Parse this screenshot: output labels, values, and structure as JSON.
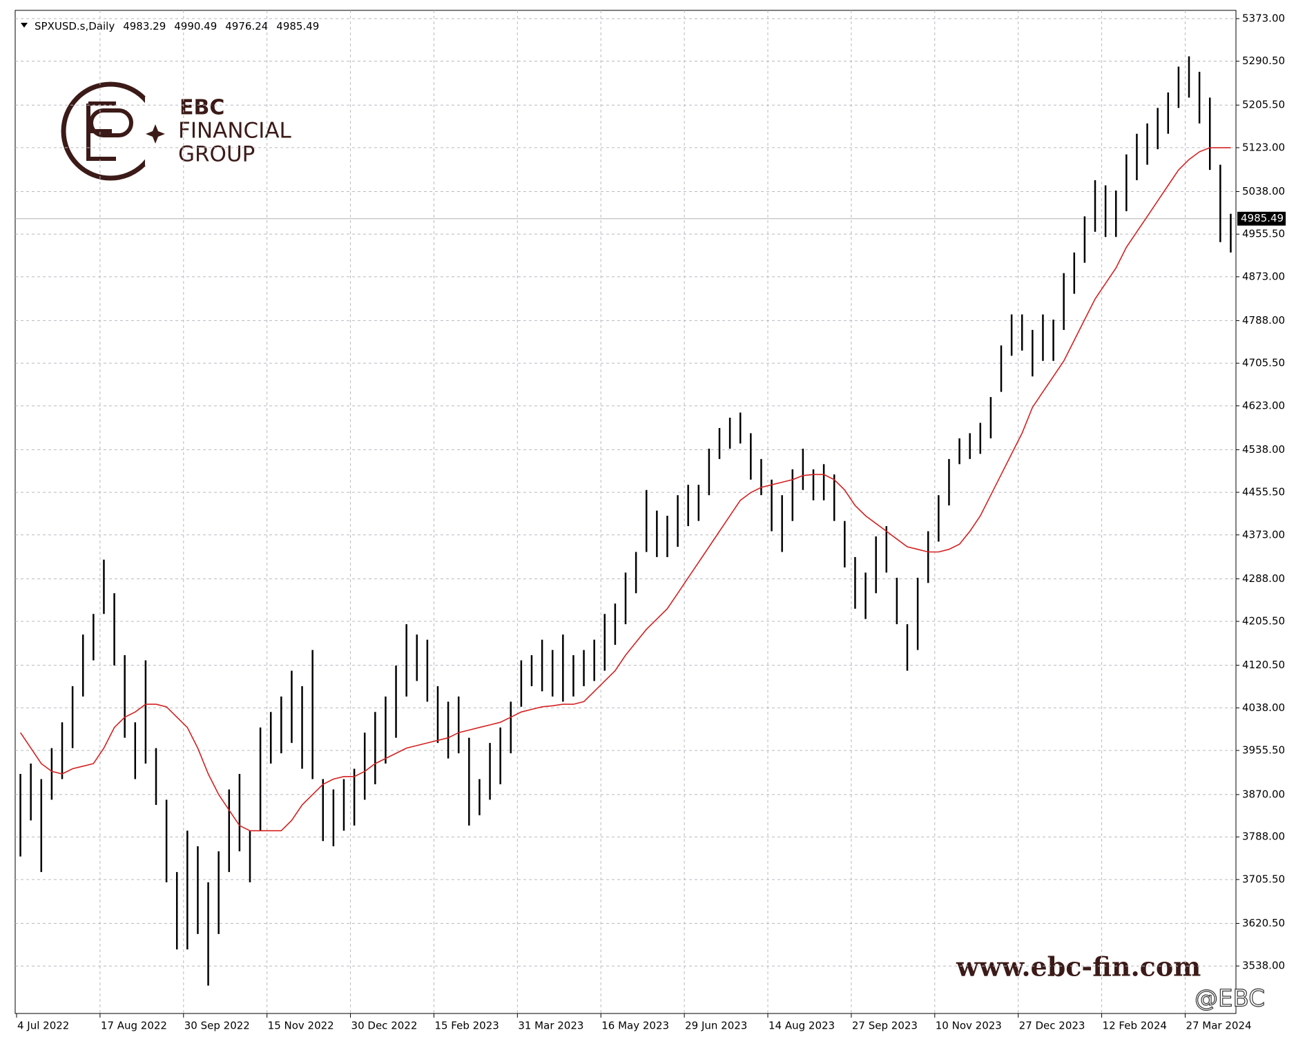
{
  "chart_data": {
    "type": "ohlc",
    "symbol": "SPXUSD.s,Daily",
    "ohlc": [
      4983.29,
      4990.49,
      4976.24,
      4985.49
    ],
    "last_price": 4985.49,
    "bar_color": "#000000",
    "ma_color": "#d42020",
    "logo": {
      "brand": "EBC",
      "line1": "FINANCIAL",
      "line2": "GROUP"
    },
    "website": "www.ebc-fin.com",
    "handle": "@EBC",
    "grid": true,
    "categories": [
      "4 Jul 2022",
      null,
      null,
      null,
      null,
      null,
      null,
      null,
      "17 Aug 2022",
      null,
      null,
      null,
      null,
      null,
      null,
      null,
      "30 Sep 2022",
      null,
      null,
      null,
      null,
      null,
      null,
      null,
      "15 Nov 2022",
      null,
      null,
      null,
      null,
      null,
      null,
      null,
      "30 Dec 2022",
      null,
      null,
      null,
      null,
      null,
      null,
      null,
      "15 Feb 2023",
      null,
      null,
      null,
      null,
      null,
      null,
      null,
      "31 Mar 2023",
      null,
      null,
      null,
      null,
      null,
      null,
      null,
      "16 May 2023",
      null,
      null,
      null,
      null,
      null,
      null,
      null,
      "29 Jun 2023",
      null,
      null,
      null,
      null,
      null,
      null,
      null,
      "14 Aug 2023",
      null,
      null,
      null,
      null,
      null,
      null,
      null,
      "27 Sep 2023",
      null,
      null,
      null,
      null,
      null,
      null,
      null,
      "10 Nov 2023",
      null,
      null,
      null,
      null,
      null,
      null,
      null,
      "27 Dec 2023",
      null,
      null,
      null,
      null,
      null,
      null,
      null,
      "12 Feb 2024",
      null,
      null,
      null,
      null,
      null,
      null,
      null,
      "27 Mar 2024",
      null,
      null,
      null,
      null
    ],
    "high": [
      3910,
      3930,
      3900,
      3960,
      4010,
      4080,
      4180,
      4220,
      4325,
      4260,
      4140,
      4010,
      4130,
      3960,
      3860,
      3720,
      3800,
      3770,
      3700,
      3760,
      3880,
      3910,
      3800,
      4000,
      4030,
      4060,
      4110,
      4080,
      4150,
      3900,
      3880,
      3900,
      3920,
      3990,
      4030,
      4060,
      4120,
      4200,
      4180,
      4170,
      4080,
      4050,
      4060,
      3980,
      3900,
      3970,
      4000,
      4050,
      4130,
      4140,
      4170,
      4150,
      4180,
      4140,
      4150,
      4170,
      4220,
      4240,
      4300,
      4340,
      4460,
      4420,
      4410,
      4450,
      4470,
      4470,
      4540,
      4580,
      4600,
      4610,
      4570,
      4520,
      4480,
      4450,
      4500,
      4540,
      4500,
      4510,
      4490,
      4400,
      4330,
      4300,
      4370,
      4390,
      4290,
      4200,
      4290,
      4380,
      4450,
      4520,
      4560,
      4570,
      4590,
      4640,
      4740,
      4800,
      4800,
      4770,
      4800,
      4790,
      4880,
      4920,
      4990,
      5060,
      5050,
      5040,
      5110,
      5150,
      5170,
      5200,
      5230,
      5280,
      5300,
      5270,
      5220,
      5090,
      4995
    ],
    "low": [
      3750,
      3820,
      3720,
      3860,
      3900,
      3960,
      4060,
      4130,
      4220,
      4120,
      3980,
      3900,
      3930,
      3850,
      3700,
      3570,
      3570,
      3600,
      3500,
      3600,
      3720,
      3760,
      3700,
      3800,
      3930,
      3950,
      3970,
      3920,
      3900,
      3780,
      3770,
      3800,
      3810,
      3860,
      3890,
      3930,
      3980,
      4060,
      4090,
      4050,
      3970,
      3940,
      3950,
      3810,
      3830,
      3860,
      3890,
      3950,
      4040,
      4080,
      4070,
      4060,
      4050,
      4060,
      4080,
      4090,
      4110,
      4160,
      4200,
      4260,
      4340,
      4330,
      4330,
      4350,
      4390,
      4400,
      4450,
      4520,
      4540,
      4550,
      4480,
      4450,
      4380,
      4340,
      4400,
      4460,
      4440,
      4440,
      4400,
      4310,
      4230,
      4210,
      4260,
      4300,
      4200,
      4110,
      4150,
      4280,
      4360,
      4430,
      4510,
      4520,
      4530,
      4560,
      4650,
      4720,
      4730,
      4680,
      4710,
      4710,
      4770,
      4840,
      4900,
      4960,
      4950,
      4950,
      5000,
      5060,
      5090,
      5120,
      5150,
      5200,
      5220,
      5170,
      5080,
      4940,
      4920
    ],
    "ma": [
      3990,
      3960,
      3930,
      3915,
      3910,
      3920,
      3925,
      3930,
      3960,
      4000,
      4020,
      4030,
      4045,
      4045,
      4040,
      4020,
      4000,
      3960,
      3910,
      3870,
      3840,
      3810,
      3800,
      3800,
      3800,
      3800,
      3820,
      3850,
      3870,
      3890,
      3900,
      3905,
      3905,
      3915,
      3930,
      3940,
      3950,
      3960,
      3965,
      3970,
      3975,
      3980,
      3990,
      3995,
      4000,
      4005,
      4010,
      4020,
      4030,
      4035,
      4040,
      4042,
      4045,
      4045,
      4050,
      4070,
      4090,
      4110,
      4140,
      4165,
      4190,
      4210,
      4230,
      4260,
      4290,
      4320,
      4350,
      4380,
      4410,
      4440,
      4455,
      4465,
      4470,
      4475,
      4480,
      4488,
      4490,
      4490,
      4480,
      4460,
      4430,
      4410,
      4395,
      4380,
      4365,
      4350,
      4345,
      4340,
      4340,
      4345,
      4355,
      4380,
      4410,
      4450,
      4490,
      4530,
      4570,
      4620,
      4650,
      4680,
      4710,
      4750,
      4790,
      4830,
      4860,
      4890,
      4930,
      4960,
      4990,
      5020,
      5050,
      5080,
      5100,
      5115,
      5123,
      5123,
      5123
    ],
    "ylim": [
      3446,
      5389
    ],
    "yticks": [
      {
        "value": 5373,
        "label": "5373.00"
      },
      {
        "value": 5290.5,
        "label": "5290.50"
      },
      {
        "value": 5205.5,
        "label": "5205.50"
      },
      {
        "value": 5123,
        "label": "5123.00"
      },
      {
        "value": 5038,
        "label": "5038.00"
      },
      {
        "value": 4955.5,
        "label": "4955.50"
      },
      {
        "value": 4873,
        "label": "4873.00"
      },
      {
        "value": 4788,
        "label": "4788.00"
      },
      {
        "value": 4705.5,
        "label": "4705.50"
      },
      {
        "value": 4623,
        "label": "4623.00"
      },
      {
        "value": 4538,
        "label": "4538.00"
      },
      {
        "value": 4455.5,
        "label": "4455.50"
      },
      {
        "value": 4373,
        "label": "4373.00"
      },
      {
        "value": 4288,
        "label": "4288.00"
      },
      {
        "value": 4205.5,
        "label": "4205.50"
      },
      {
        "value": 4120.5,
        "label": "4120.50"
      },
      {
        "value": 4038,
        "label": "4038.00"
      },
      {
        "value": 3955.5,
        "label": "3955.50"
      },
      {
        "value": 3870,
        "label": "3870.00"
      },
      {
        "value": 3788,
        "label": "3788.00"
      },
      {
        "value": 3705.5,
        "label": "3705.50"
      },
      {
        "value": 3620.5,
        "label": "3620.50"
      },
      {
        "value": 3538,
        "label": "3538.00"
      }
    ]
  }
}
